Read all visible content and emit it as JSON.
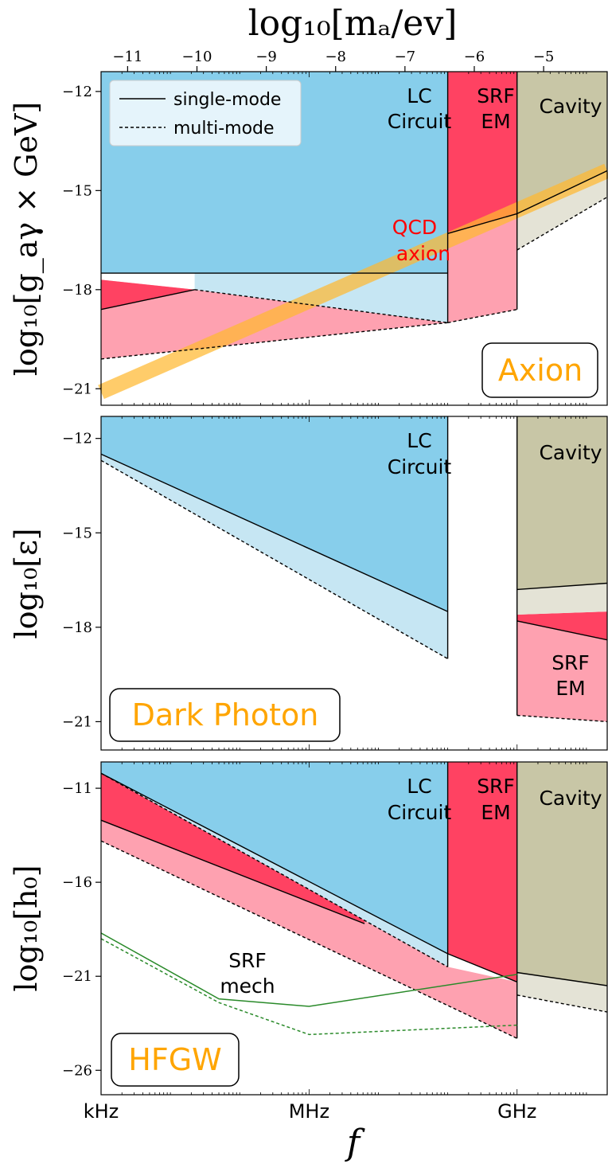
{
  "colors": {
    "lc": "#87ceeb",
    "lc_light": "#c6e6f3",
    "srf_em": "#ff4262",
    "srf_em_light": "#fea1b0",
    "cavity": "#c8c6a6",
    "cavity_light": "#e4e3d6",
    "qcd_band": "#ffb830",
    "panel_label": "#ffa500",
    "qcd_text": "#ff0000",
    "mech_line": "#2a8a2a"
  },
  "chart_data": {
    "type": "area",
    "top_axis": {
      "label": "log₁₀[mₐ/ev]",
      "ticks": [
        "−11",
        "−10",
        "−9",
        "−8",
        "−7",
        "−6",
        "−5"
      ],
      "tick_values": [
        -11,
        -10,
        -9,
        -8,
        -7,
        -6,
        -5
      ]
    },
    "x_axis": {
      "label": "f",
      "scale": "log",
      "range_log10_hz": [
        3,
        10.3
      ],
      "ticks": [
        "kHz",
        "MHz",
        "GHz"
      ],
      "tick_log10_hz": [
        3,
        6,
        9
      ]
    },
    "legend": {
      "placement": "upper-left",
      "entries": [
        {
          "label": "single-mode",
          "style": "solid"
        },
        {
          "label": "multi-mode",
          "style": "dashed"
        }
      ]
    },
    "panels": [
      {
        "name": "Axion",
        "ylabel": "log₁₀[g_aγ × GeV]",
        "ylim": [
          -21.5,
          -11.4
        ],
        "yticks": [
          -12,
          -15,
          -18,
          -21
        ],
        "region_labels": {
          "lc": [
            "LC",
            "Circuit"
          ],
          "srf": [
            "SRF",
            "EM"
          ],
          "cavity": [
            "Cavity"
          ],
          "qcd": [
            "QCD",
            "axion"
          ]
        },
        "regions": {
          "lc_single": [
            [
              3,
              -17.5
            ],
            [
              8.0,
              -17.5
            ]
          ],
          "lc_multi": [
            [
              4.35,
              -18.0
            ],
            [
              8.0,
              -19.0
            ]
          ],
          "srf_single": [
            [
              3,
              -18.6
            ],
            [
              4.35,
              -18.0
            ]
          ],
          "srf_multi": [
            [
              3,
              -20.1
            ],
            [
              8.0,
              -19.0
            ]
          ],
          "srf_em_single": [
            [
              8.0,
              -16.3
            ],
            [
              9.0,
              -15.7
            ]
          ],
          "srf_em_multi": [
            [
              8.0,
              -19.0
            ],
            [
              9.0,
              -18.6
            ]
          ],
          "cavity_single": [
            [
              9.0,
              -15.7
            ],
            [
              10.3,
              -14.4
            ]
          ],
          "cavity_multi": [
            [
              9.0,
              -16.8
            ],
            [
              10.3,
              -15.2
            ]
          ],
          "qcd_band": [
            [
              3,
              -21.1
            ],
            [
              10.3,
              -14.4
            ]
          ]
        }
      },
      {
        "name": "Dark Photon",
        "ylabel": "log₁₀[ε]",
        "ylim": [
          -21.9,
          -11.3
        ],
        "yticks": [
          -12,
          -15,
          -18,
          -21
        ],
        "region_labels": {
          "lc": [
            "LC",
            "Circuit"
          ],
          "srf": [
            "SRF",
            "EM"
          ],
          "cavity": [
            "Cavity"
          ]
        },
        "regions": {
          "lc_single": [
            [
              3,
              -12.5
            ],
            [
              8.0,
              -17.5
            ]
          ],
          "lc_multi": [
            [
              3,
              -12.7
            ],
            [
              8.0,
              -19.0
            ]
          ],
          "srf_em_single": [
            [
              9.0,
              -17.8
            ],
            [
              10.3,
              -18.4
            ]
          ],
          "srf_em_multi": [
            [
              9.0,
              -20.8
            ],
            [
              10.3,
              -21.0
            ]
          ],
          "srf_em_top": [
            [
              9.0,
              -17.6
            ],
            [
              10.3,
              -17.5
            ]
          ],
          "cavity_single": [
            [
              9.0,
              -16.8
            ],
            [
              10.3,
              -16.6
            ]
          ]
        }
      },
      {
        "name": "HFGW",
        "ylabel": "log₁₀[h₀]",
        "ylim": [
          -27.3,
          -9.6
        ],
        "yticks": [
          -11,
          -16,
          -21,
          -26
        ],
        "region_labels": {
          "lc": [
            "LC",
            "Circuit"
          ],
          "srf": [
            "SRF",
            "EM"
          ],
          "cavity": [
            "Cavity"
          ],
          "mech": [
            "SRF",
            "mech"
          ]
        },
        "regions": {
          "lc_single": [
            [
              3,
              -10.2
            ],
            [
              8.0,
              -19.8
            ]
          ],
          "lc_multi": [
            [
              3,
              -10.2
            ],
            [
              8.0,
              -20.5
            ]
          ],
          "srf_single": [
            [
              3,
              -12.7
            ],
            [
              6.8,
              -18.2
            ]
          ],
          "srf_multi": [
            [
              3,
              -13.8
            ],
            [
              9.0,
              -24.3
            ]
          ],
          "srf_em_single": [
            [
              8.0,
              -20.0
            ],
            [
              9.0,
              -21.3
            ]
          ],
          "cavity_single": [
            [
              9.0,
              -20.8
            ],
            [
              10.3,
              -21.5
            ]
          ],
          "cavity_multi": [
            [
              9.0,
              -22.0
            ],
            [
              10.3,
              -22.9
            ]
          ],
          "mech_single": [
            [
              3,
              -18.7
            ],
            [
              4.7,
              -22.2
            ],
            [
              6.0,
              -22.6
            ],
            [
              9.0,
              -20.9
            ]
          ],
          "mech_multi": [
            [
              3,
              -19.0
            ],
            [
              4.7,
              -22.4
            ],
            [
              6.0,
              -24.1
            ],
            [
              9.0,
              -23.6
            ]
          ]
        }
      }
    ]
  }
}
